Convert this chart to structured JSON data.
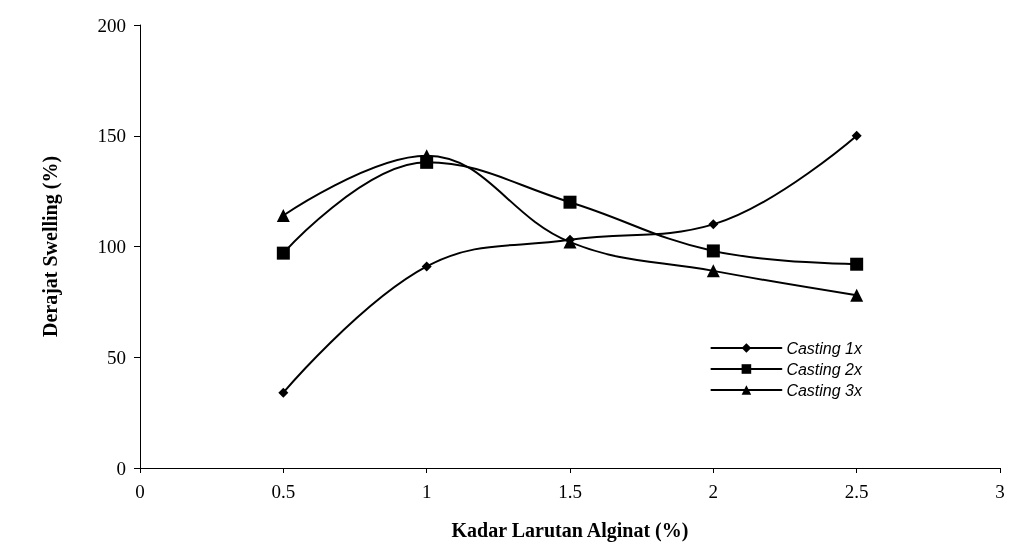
{
  "chart_data": {
    "type": "line",
    "xlabel": "Kadar Larutan Alginat (%)",
    "ylabel": "Derajat Swelling (%)",
    "x": [
      0.5,
      1,
      1.5,
      2,
      2.5
    ],
    "xlim": [
      0,
      3
    ],
    "xticks": [
      0,
      0.5,
      1,
      1.5,
      2,
      2.5,
      3
    ],
    "ylim": [
      0,
      200
    ],
    "yticks": [
      0,
      50,
      100,
      150,
      200
    ],
    "grid": false,
    "legend": "right",
    "series": [
      {
        "name": "Casting 1x",
        "color": "#000000",
        "marker": "diamond",
        "values": [
          34,
          91,
          103,
          110,
          150
        ]
      },
      {
        "name": "Casting 2x",
        "color": "#000000",
        "marker": "square",
        "values": [
          97,
          138,
          120,
          98,
          92
        ]
      },
      {
        "name": "Casting 3x",
        "color": "#000000",
        "marker": "triangle",
        "values": [
          114,
          141,
          102,
          89,
          78
        ]
      }
    ]
  }
}
